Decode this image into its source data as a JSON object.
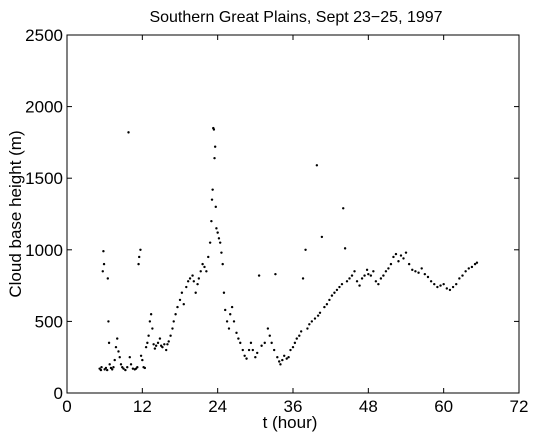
{
  "chart_data": {
    "type": "scatter",
    "title": "Southern Great Plains, Sept 23−25, 1997",
    "xlabel": "t (hour)",
    "ylabel": "Cloud base height (m)",
    "xlim": [
      0,
      72
    ],
    "ylim": [
      0,
      2500
    ],
    "xticks": [
      0,
      12,
      24,
      36,
      48,
      60,
      72
    ],
    "yticks": [
      0,
      500,
      1000,
      1500,
      2000,
      2500
    ],
    "grid": false,
    "marker_color": "#000000",
    "series": [
      {
        "points": [
          [
            5.2,
            170
          ],
          [
            5.4,
            160
          ],
          [
            5.5,
            180
          ],
          [
            5.7,
            850
          ],
          [
            5.8,
            990
          ],
          [
            5.9,
            900
          ],
          [
            6.0,
            165
          ],
          [
            6.2,
            175
          ],
          [
            6.4,
            160
          ],
          [
            6.5,
            800
          ],
          [
            6.6,
            500
          ],
          [
            6.7,
            350
          ],
          [
            6.8,
            200
          ],
          [
            7.0,
            175
          ],
          [
            7.2,
            165
          ],
          [
            7.4,
            180
          ],
          [
            7.6,
            230
          ],
          [
            7.8,
            320
          ],
          [
            8.0,
            380
          ],
          [
            8.2,
            290
          ],
          [
            8.4,
            250
          ],
          [
            8.6,
            200
          ],
          [
            8.8,
            180
          ],
          [
            9.0,
            170
          ],
          [
            9.3,
            160
          ],
          [
            9.6,
            180
          ],
          [
            9.8,
            1820
          ],
          [
            10.0,
            250
          ],
          [
            10.2,
            200
          ],
          [
            10.5,
            170
          ],
          [
            10.8,
            165
          ],
          [
            11.0,
            170
          ],
          [
            11.2,
            180
          ],
          [
            11.4,
            900
          ],
          [
            11.5,
            950
          ],
          [
            11.7,
            1000
          ],
          [
            11.8,
            260
          ],
          [
            12.0,
            230
          ],
          [
            12.2,
            180
          ],
          [
            12.4,
            175
          ],
          [
            12.6,
            320
          ],
          [
            12.8,
            350
          ],
          [
            13.0,
            400
          ],
          [
            13.2,
            500
          ],
          [
            13.4,
            550
          ],
          [
            13.6,
            450
          ],
          [
            13.8,
            340
          ],
          [
            14.0,
            310
          ],
          [
            14.2,
            330
          ],
          [
            14.5,
            350
          ],
          [
            14.8,
            380
          ],
          [
            15.0,
            330
          ],
          [
            15.2,
            320
          ],
          [
            15.5,
            340
          ],
          [
            15.8,
            300
          ],
          [
            16.0,
            340
          ],
          [
            16.2,
            360
          ],
          [
            16.5,
            400
          ],
          [
            16.8,
            450
          ],
          [
            17.0,
            500
          ],
          [
            17.3,
            550
          ],
          [
            17.6,
            600
          ],
          [
            18.0,
            650
          ],
          [
            18.3,
            700
          ],
          [
            18.6,
            620
          ],
          [
            19.0,
            740
          ],
          [
            19.3,
            780
          ],
          [
            19.6,
            800
          ],
          [
            20.0,
            820
          ],
          [
            20.2,
            780
          ],
          [
            20.5,
            700
          ],
          [
            20.8,
            760
          ],
          [
            21.0,
            800
          ],
          [
            21.3,
            850
          ],
          [
            21.6,
            900
          ],
          [
            21.9,
            880
          ],
          [
            22.2,
            850
          ],
          [
            22.5,
            950
          ],
          [
            22.8,
            1050
          ],
          [
            23.0,
            1200
          ],
          [
            23.1,
            1350
          ],
          [
            23.2,
            1420
          ],
          [
            23.3,
            1850
          ],
          [
            23.4,
            1840
          ],
          [
            23.5,
            1640
          ],
          [
            23.6,
            1720
          ],
          [
            23.7,
            1300
          ],
          [
            23.8,
            1150
          ],
          [
            24.0,
            1120
          ],
          [
            24.2,
            1080
          ],
          [
            24.4,
            1050
          ],
          [
            24.6,
            980
          ],
          [
            24.8,
            900
          ],
          [
            25.0,
            700
          ],
          [
            25.2,
            580
          ],
          [
            25.5,
            500
          ],
          [
            25.8,
            450
          ],
          [
            26.0,
            550
          ],
          [
            26.3,
            600
          ],
          [
            26.6,
            500
          ],
          [
            27.0,
            420
          ],
          [
            27.3,
            380
          ],
          [
            27.6,
            350
          ],
          [
            28.0,
            300
          ],
          [
            28.3,
            260
          ],
          [
            28.6,
            240
          ],
          [
            29.0,
            300
          ],
          [
            29.3,
            350
          ],
          [
            29.6,
            300
          ],
          [
            30.0,
            250
          ],
          [
            30.3,
            280
          ],
          [
            30.6,
            820
          ],
          [
            31.0,
            330
          ],
          [
            31.5,
            350
          ],
          [
            32.0,
            450
          ],
          [
            32.3,
            400
          ],
          [
            32.6,
            350
          ],
          [
            33.0,
            300
          ],
          [
            33.2,
            830
          ],
          [
            33.5,
            250
          ],
          [
            33.8,
            220
          ],
          [
            34.0,
            200
          ],
          [
            34.3,
            230
          ],
          [
            34.6,
            260
          ],
          [
            35.0,
            240
          ],
          [
            35.3,
            250
          ],
          [
            35.6,
            300
          ],
          [
            36.0,
            320
          ],
          [
            36.3,
            350
          ],
          [
            36.6,
            380
          ],
          [
            37.0,
            400
          ],
          [
            37.3,
            430
          ],
          [
            37.6,
            800
          ],
          [
            38.0,
            1000
          ],
          [
            38.3,
            450
          ],
          [
            38.6,
            480
          ],
          [
            39.0,
            500
          ],
          [
            39.5,
            520
          ],
          [
            39.8,
            1590
          ],
          [
            40.0,
            540
          ],
          [
            40.3,
            560
          ],
          [
            40.6,
            1090
          ],
          [
            41.0,
            600
          ],
          [
            41.4,
            620
          ],
          [
            41.8,
            650
          ],
          [
            42.2,
            680
          ],
          [
            42.6,
            700
          ],
          [
            43.0,
            720
          ],
          [
            43.4,
            740
          ],
          [
            43.8,
            760
          ],
          [
            44.0,
            1290
          ],
          [
            44.3,
            1010
          ],
          [
            44.6,
            780
          ],
          [
            45.0,
            800
          ],
          [
            45.4,
            820
          ],
          [
            45.8,
            850
          ],
          [
            46.2,
            780
          ],
          [
            46.6,
            750
          ],
          [
            47.0,
            800
          ],
          [
            47.4,
            820
          ],
          [
            47.8,
            860
          ],
          [
            48.0,
            830
          ],
          [
            48.4,
            820
          ],
          [
            48.8,
            850
          ],
          [
            49.2,
            780
          ],
          [
            49.6,
            760
          ],
          [
            50.0,
            800
          ],
          [
            50.4,
            820
          ],
          [
            50.8,
            850
          ],
          [
            51.2,
            870
          ],
          [
            51.6,
            900
          ],
          [
            52.0,
            950
          ],
          [
            52.4,
            970
          ],
          [
            52.8,
            920
          ],
          [
            53.2,
            960
          ],
          [
            53.6,
            940
          ],
          [
            54.0,
            980
          ],
          [
            54.5,
            900
          ],
          [
            55.0,
            860
          ],
          [
            55.5,
            850
          ],
          [
            56.0,
            840
          ],
          [
            56.5,
            870
          ],
          [
            57.0,
            830
          ],
          [
            57.5,
            810
          ],
          [
            58.0,
            780
          ],
          [
            58.5,
            760
          ],
          [
            59.0,
            740
          ],
          [
            59.5,
            750
          ],
          [
            60.0,
            760
          ],
          [
            60.5,
            730
          ],
          [
            61.0,
            720
          ],
          [
            61.5,
            740
          ],
          [
            62.0,
            760
          ],
          [
            62.5,
            800
          ],
          [
            63.0,
            820
          ],
          [
            63.5,
            850
          ],
          [
            64.0,
            870
          ],
          [
            64.5,
            880
          ],
          [
            65.0,
            900
          ],
          [
            65.3,
            910
          ]
        ]
      }
    ]
  }
}
